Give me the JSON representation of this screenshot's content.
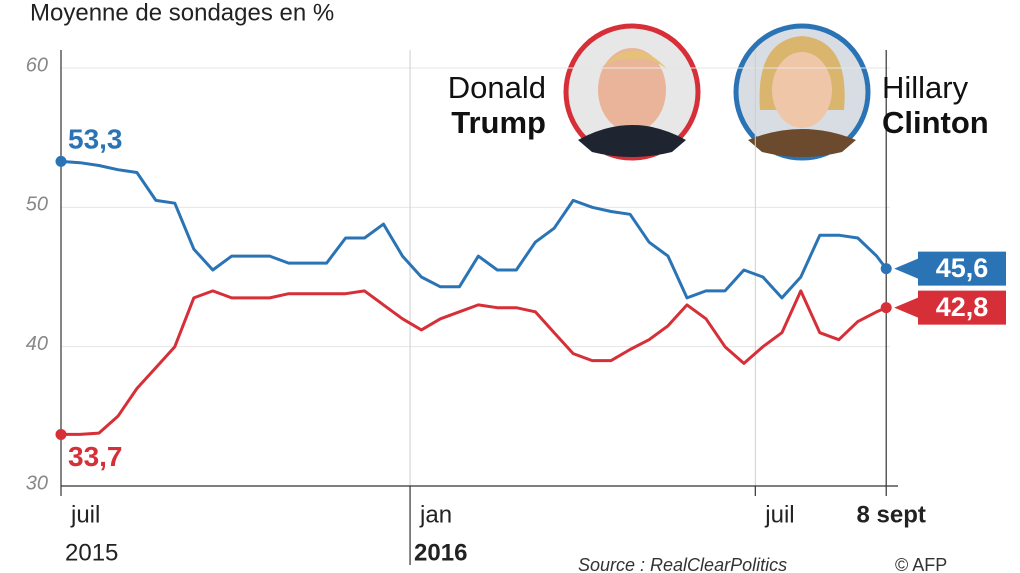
{
  "chart_data": {
    "type": "line",
    "title": "Moyenne de sondages en %",
    "source": "Source : RealClearPolitics",
    "credit": "© AFP",
    "x": [
      0,
      10,
      20,
      30,
      40,
      50,
      60,
      70,
      80,
      90,
      100,
      110,
      120,
      130,
      140,
      150,
      160,
      170,
      180,
      190,
      200,
      210,
      220,
      230,
      240,
      250,
      260,
      270,
      280,
      290,
      300,
      310,
      320,
      330,
      340,
      350,
      360,
      370,
      380,
      390,
      400,
      410,
      420,
      430,
      435
    ],
    "xlim": [
      0,
      437
    ],
    "xticks": [
      {
        "value": 0,
        "label": "juil"
      },
      {
        "value": 184,
        "label": "jan"
      },
      {
        "value": 366,
        "label": "juil"
      },
      {
        "value": 435,
        "label": "8 sept"
      }
    ],
    "xtick_years": [
      "2015",
      "2016",
      null,
      null
    ],
    "ylim": [
      30,
      60
    ],
    "yticks": [
      30,
      40,
      50,
      60
    ],
    "grid": true,
    "series": [
      {
        "first_name": "Hillary",
        "name": "Clinton",
        "color": "#2a74b5",
        "values": [
          53.3,
          53.2,
          53.0,
          52.7,
          52.5,
          50.5,
          50.3,
          47,
          45.5,
          46.5,
          46.5,
          46.5,
          46,
          46,
          46,
          47.8,
          47.8,
          48.8,
          46.5,
          45,
          44.3,
          44.3,
          46.5,
          45.5,
          45.5,
          47.5,
          48.5,
          50.5,
          50,
          49.7,
          49.5,
          47.5,
          46.5,
          43.5,
          44,
          44,
          45.5,
          45,
          43.5,
          45,
          48,
          48,
          47.8,
          46.5,
          45.6
        ],
        "value_labels": [
          "53,3",
          null,
          null,
          null,
          null,
          null,
          null,
          null,
          null,
          null,
          null,
          null,
          null,
          null,
          null,
          null,
          null,
          null,
          null,
          null,
          null,
          null,
          null,
          null,
          null,
          null,
          null,
          null,
          null,
          null,
          null,
          null,
          null,
          null,
          null,
          null,
          null,
          null,
          null,
          null,
          null,
          null,
          null,
          null,
          "45,6"
        ]
      },
      {
        "first_name": "Donald",
        "name": "Trump",
        "color": "#d62f37",
        "values": [
          33.7,
          33.7,
          33.8,
          35,
          37,
          38.5,
          40,
          43.5,
          44,
          43.5,
          43.5,
          43.5,
          43.8,
          43.8,
          43.8,
          43.8,
          44,
          43,
          42,
          41.2,
          42,
          42.5,
          43,
          42.8,
          42.8,
          42.5,
          41,
          39.5,
          39,
          39,
          39.8,
          40.5,
          41.5,
          43,
          42,
          40,
          38.8,
          40,
          41,
          44,
          41,
          40.5,
          41.8,
          42.5,
          42.8
        ],
        "value_labels": [
          "33,7",
          null,
          null,
          null,
          null,
          null,
          null,
          null,
          null,
          null,
          null,
          null,
          null,
          null,
          null,
          null,
          null,
          null,
          null,
          null,
          null,
          null,
          null,
          null,
          null,
          null,
          null,
          null,
          null,
          null,
          null,
          null,
          null,
          null,
          null,
          null,
          null,
          null,
          null,
          null,
          null,
          null,
          null,
          null,
          "42,8"
        ]
      }
    ]
  }
}
